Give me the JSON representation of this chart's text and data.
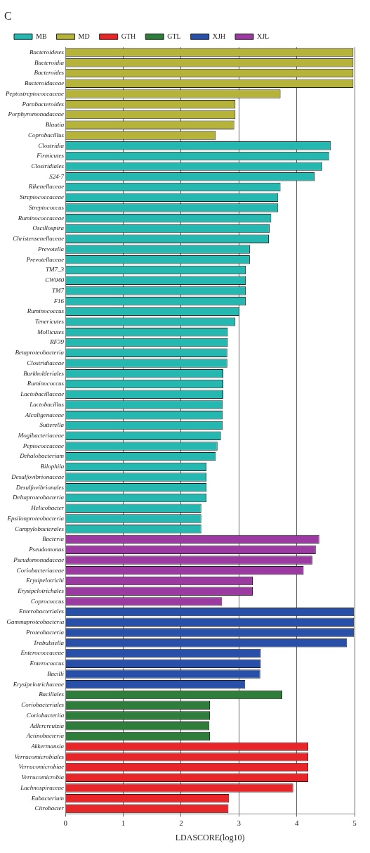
{
  "chart_data": {
    "type": "bar",
    "orientation": "horizontal",
    "title": "C",
    "xlabel": "LDASCORE(log10)",
    "categories": [
      "Bacteroidetes",
      "Bacteroidia",
      "Bacteroides",
      "Bacteroidaceae",
      "Peptostreptococcaceae",
      "Parabacteroides",
      "Porphyromonadaceae",
      "Blautia",
      "Coprobacillus",
      "Clostridia",
      "Firmicutes",
      "Clostridiales",
      "S24-7",
      "Rikenellaceae",
      "Streptococcaceae",
      "Streptococcus",
      "Ruminococcaceae",
      "Oscillospira",
      "Christensenellaceae",
      "Prevotella",
      "Prevotellaceae",
      "TM7_3",
      "CW040",
      "TM7",
      "F16",
      "Ruminococcus",
      "Tenericutes",
      "Mollicutes",
      "RF39",
      "Betaproteobacteria",
      "Clostridiaceae",
      "Burkholderiales",
      "Ruminococcus",
      "Lactobacillaceae",
      "Lactobacillus",
      "Alcaligenaceae",
      "Sutterella",
      "Mogibacteriaceae",
      "Peptococcaceae",
      "Dehalobacterium",
      "Bilophila",
      "Desulfovibrionaceae",
      "Desulfovibrionales",
      "Deltaproteobacteria",
      "Helicobacter",
      "Epsilonproteobacteria",
      "Campylobacterales",
      "Bacteria",
      "Pseudomonas",
      "Pseudomonadaceae",
      "Coriobacteriaceae",
      "Erysipelotrichi",
      "Erysipelotrichales",
      "Coprococcus",
      "Enterobacteriales",
      "Gammaproteobacteria",
      "Proteobacteria",
      "Trabulsiella",
      "Enterococcaceae",
      "Enterococcus",
      "Bacilli",
      "Erysipelotrichaceae",
      "Bacillales",
      "Coriobacteriales",
      "Coriobacteriia",
      "Adlercreutzia",
      "Actinobacteria",
      "Akkermansia",
      "Verrucomicrobiales",
      "Verrucomicrobiae",
      "Verrucomicrobia",
      "Lachnospiraceae",
      "Eubacterium",
      "Citrobacter"
    ],
    "series": [
      {
        "name": "MB",
        "color": "#25b8b0",
        "values": [
          null,
          null,
          null,
          null,
          null,
          null,
          null,
          null,
          null,
          4.59,
          4.56,
          4.44,
          4.31,
          3.72,
          3.68,
          3.68,
          3.56,
          3.53,
          3.52,
          3.19,
          3.19,
          3.12,
          3.12,
          3.12,
          3.12,
          3.01,
          2.94,
          2.81,
          2.81,
          2.8,
          2.8,
          2.73,
          2.73,
          2.73,
          2.72,
          2.72,
          2.72,
          2.69,
          2.63,
          2.6,
          2.44,
          2.44,
          2.44,
          2.44,
          2.35,
          2.35,
          2.35,
          null,
          null,
          null,
          null,
          null,
          null,
          null,
          null,
          null,
          null,
          null,
          null,
          null,
          null,
          null,
          null,
          null,
          null,
          null,
          null,
          null,
          null,
          null,
          null,
          null,
          null,
          null
        ]
      },
      {
        "name": "MD",
        "color": "#b5b33a",
        "values": [
          4.98,
          4.98,
          4.98,
          4.98,
          3.72,
          2.94,
          2.94,
          2.92,
          2.6,
          null,
          null,
          null,
          null,
          null,
          null,
          null,
          null,
          null,
          null,
          null,
          null,
          null,
          null,
          null,
          null,
          null,
          null,
          null,
          null,
          null,
          null,
          null,
          null,
          null,
          null,
          null,
          null,
          null,
          null,
          null,
          null,
          null,
          null,
          null,
          null,
          null,
          null,
          null,
          null,
          null,
          null,
          null,
          null,
          null,
          null,
          null,
          null,
          null,
          null,
          null,
          null,
          null,
          null,
          null,
          null,
          null,
          null,
          null,
          null,
          null,
          null,
          null,
          null,
          null
        ]
      },
      {
        "name": "GTH",
        "color": "#e8262a",
        "values": [
          null,
          null,
          null,
          null,
          null,
          null,
          null,
          null,
          null,
          null,
          null,
          null,
          null,
          null,
          null,
          null,
          null,
          null,
          null,
          null,
          null,
          null,
          null,
          null,
          null,
          null,
          null,
          null,
          null,
          null,
          null,
          null,
          null,
          null,
          null,
          null,
          null,
          null,
          null,
          null,
          null,
          null,
          null,
          null,
          null,
          null,
          null,
          null,
          null,
          null,
          null,
          null,
          null,
          null,
          null,
          null,
          null,
          null,
          null,
          null,
          null,
          null,
          null,
          null,
          null,
          null,
          null,
          4.2,
          4.2,
          4.2,
          4.2,
          3.94,
          2.83,
          2.82
        ]
      },
      {
        "name": "GTL",
        "color": "#2e7d3a",
        "values": [
          null,
          null,
          null,
          null,
          null,
          null,
          null,
          null,
          null,
          null,
          null,
          null,
          null,
          null,
          null,
          null,
          null,
          null,
          null,
          null,
          null,
          null,
          null,
          null,
          null,
          null,
          null,
          null,
          null,
          null,
          null,
          null,
          null,
          null,
          null,
          null,
          null,
          null,
          null,
          null,
          null,
          null,
          null,
          null,
          null,
          null,
          null,
          null,
          null,
          null,
          null,
          null,
          null,
          null,
          null,
          null,
          null,
          null,
          null,
          null,
          null,
          null,
          3.75,
          2.5,
          2.5,
          2.49,
          2.5,
          null,
          null,
          null,
          null,
          null,
          null,
          null
        ]
      },
      {
        "name": "XJH",
        "color": "#2850a8",
        "values": [
          null,
          null,
          null,
          null,
          null,
          null,
          null,
          null,
          null,
          null,
          null,
          null,
          null,
          null,
          null,
          null,
          null,
          null,
          null,
          null,
          null,
          null,
          null,
          null,
          null,
          null,
          null,
          null,
          null,
          null,
          null,
          null,
          null,
          null,
          null,
          null,
          null,
          null,
          null,
          null,
          null,
          null,
          null,
          null,
          null,
          null,
          null,
          null,
          null,
          null,
          null,
          null,
          null,
          null,
          4.99,
          4.99,
          4.99,
          4.87,
          3.38,
          3.38,
          3.37,
          3.11,
          null,
          null,
          null,
          null,
          null,
          null,
          null,
          null,
          null,
          null,
          null,
          null
        ]
      },
      {
        "name": "XJL",
        "color": "#9b3aa0",
        "values": [
          null,
          null,
          null,
          null,
          null,
          null,
          null,
          null,
          null,
          null,
          null,
          null,
          null,
          null,
          null,
          null,
          null,
          null,
          null,
          null,
          null,
          null,
          null,
          null,
          null,
          null,
          null,
          null,
          null,
          null,
          null,
          null,
          null,
          null,
          null,
          null,
          null,
          null,
          null,
          null,
          null,
          null,
          null,
          null,
          null,
          null,
          null,
          4.39,
          4.33,
          4.27,
          4.12,
          3.24,
          3.24,
          2.71,
          null,
          null,
          null,
          null,
          null,
          null,
          null,
          null,
          null,
          null,
          null,
          null,
          null,
          null,
          null,
          null,
          null,
          null,
          null,
          null
        ]
      }
    ],
    "xlim": [
      0,
      5
    ],
    "xticks": [
      0,
      1,
      2,
      3,
      4,
      5
    ],
    "grid": "x",
    "legend": "top left"
  }
}
